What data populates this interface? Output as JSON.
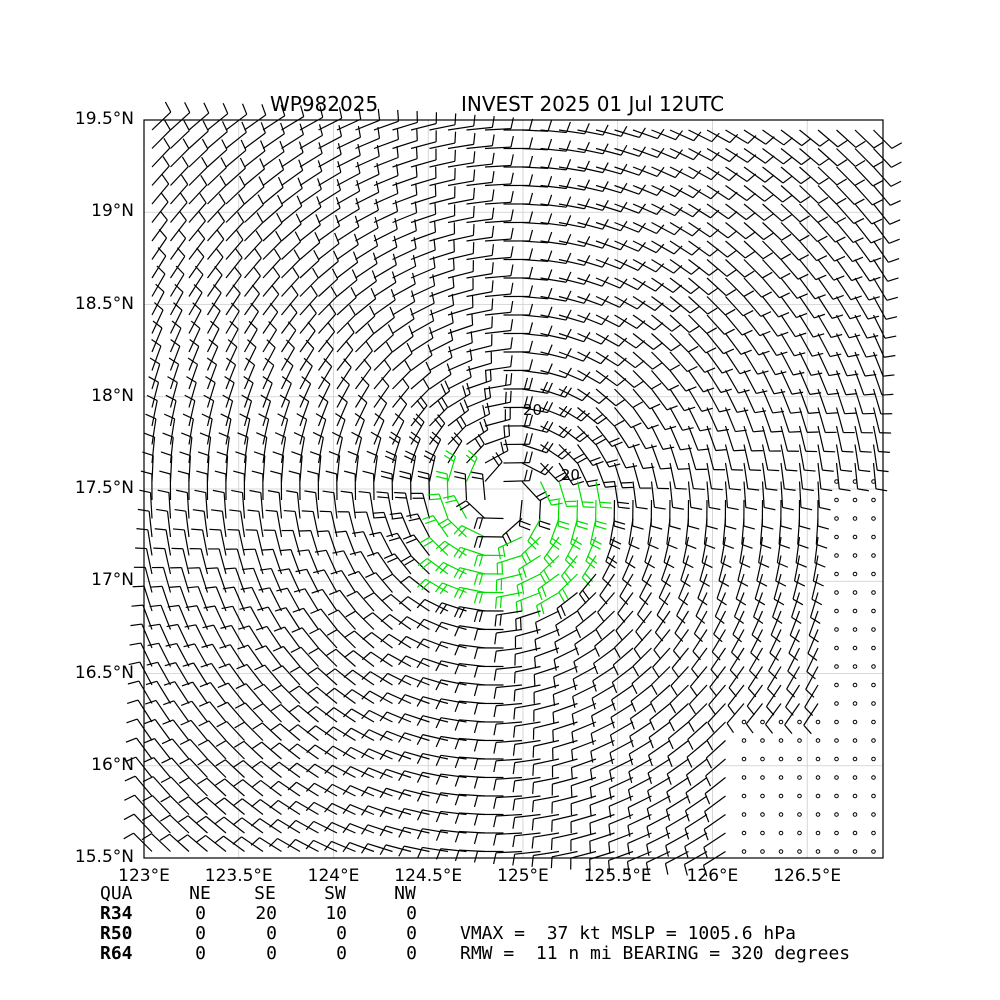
{
  "chart_data": {
    "type": "wind-barb-map",
    "title_left": "WP982025",
    "title_right": "INVEST 2025 01 Jul 12UTC",
    "x_ticks": [
      "123°E",
      "123.5°E",
      "124°E",
      "124.5°E",
      "125°E",
      "125.5°E",
      "126°E",
      "126.5°E"
    ],
    "x_tick_values": [
      123.0,
      123.5,
      124.0,
      124.5,
      125.0,
      125.5,
      126.0,
      126.5
    ],
    "y_ticks": [
      "15.5°N",
      "16°N",
      "16.5°N",
      "17°N",
      "17.5°N",
      "18°N",
      "18.5°N",
      "19°N",
      "19.5°N"
    ],
    "y_tick_values": [
      15.5,
      16.0,
      16.5,
      17.0,
      17.5,
      18.0,
      18.5,
      19.0,
      19.5
    ],
    "xlim": [
      123.0,
      126.9
    ],
    "ylim": [
      15.5,
      19.5
    ],
    "grid": true,
    "center": {
      "lon": 124.9,
      "lat": 17.45
    },
    "contour_labels": [
      {
        "text": "20",
        "lon": 125.0,
        "lat": 17.9
      },
      {
        "text": "20",
        "lon": 125.2,
        "lat": 17.55
      }
    ],
    "colors": {
      "barb": "#000000",
      "strong_barb": "#00dd00",
      "grid": "#cccccc"
    }
  },
  "radii_table": {
    "headers": [
      "QUA",
      "NE",
      "SE",
      "SW",
      "NW"
    ],
    "rows": [
      {
        "label": "R34",
        "values": [
          "0",
          "20",
          "10",
          "0"
        ]
      },
      {
        "label": "R50",
        "values": [
          "0",
          "0",
          "0",
          "0"
        ]
      },
      {
        "label": "R64",
        "values": [
          "0",
          "0",
          "0",
          "0"
        ]
      }
    ]
  },
  "summary": {
    "line1": "VMAX =  37 kt MSLP = 1005.6 hPa",
    "line2": "RMW =  11 n mi BEARING = 320 degrees"
  }
}
